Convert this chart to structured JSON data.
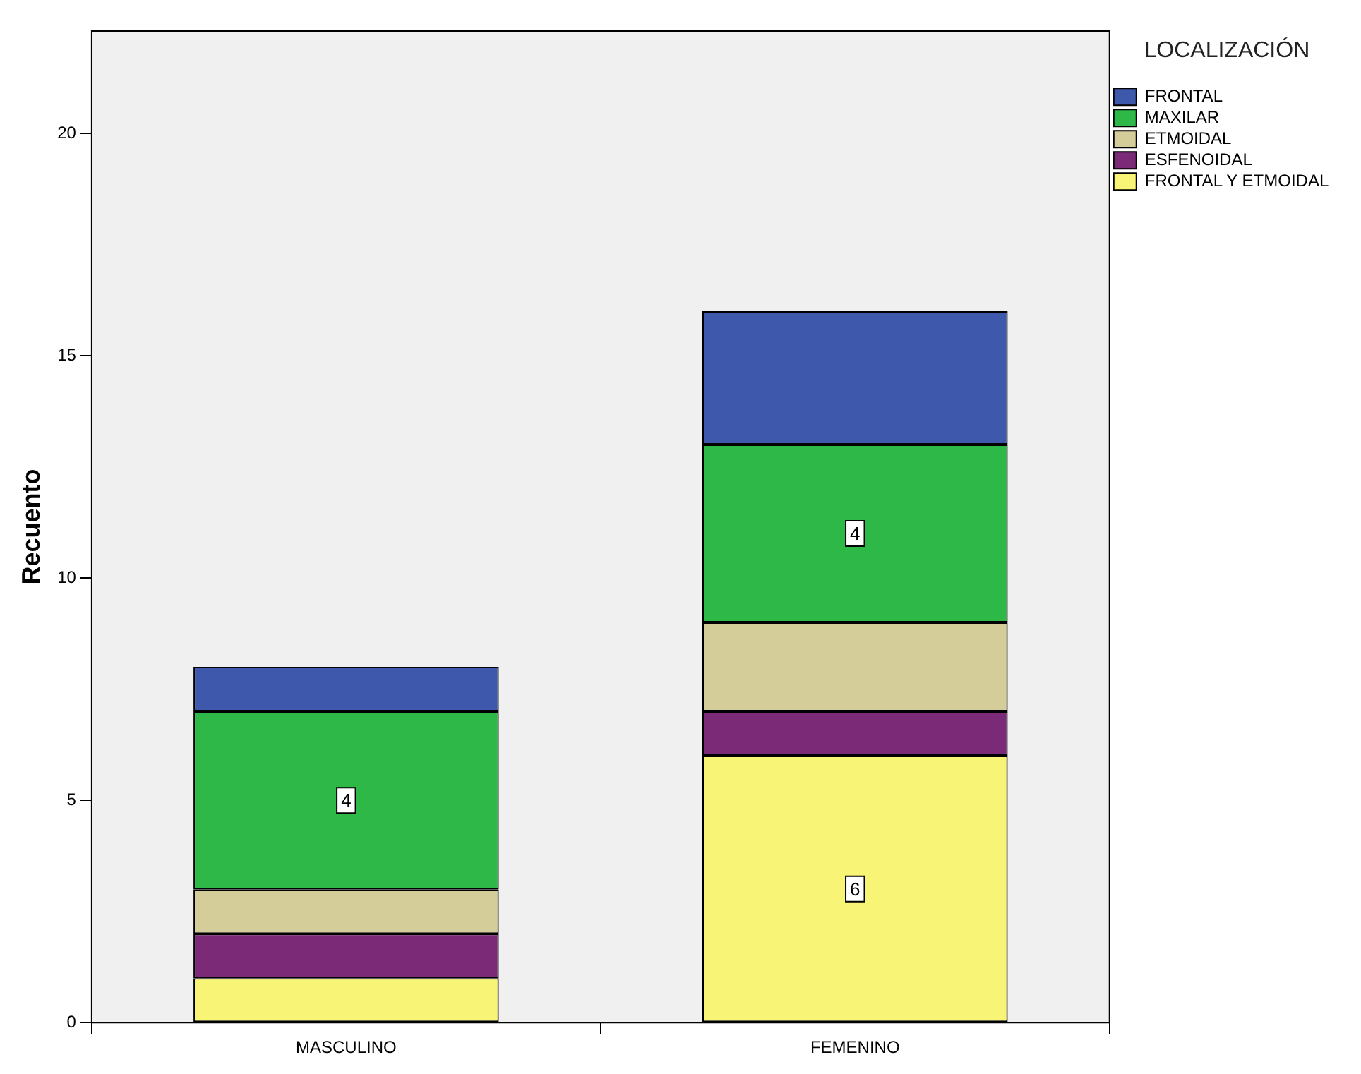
{
  "chart_data": {
    "type": "bar",
    "stacked": true,
    "ylabel": "Recuento",
    "legend_title": "LOCALIZACIÓN",
    "legend": "right",
    "categories": [
      "MASCULINO",
      "FEMENINO"
    ],
    "series": [
      {
        "name": "FRONTAL Y ETMOIDAL",
        "color": "#f8f576",
        "values": [
          1,
          6
        ],
        "value_labels": [
          null,
          "6"
        ]
      },
      {
        "name": "ESFENOIDAL",
        "color": "#7a2a77",
        "values": [
          1,
          1
        ],
        "value_labels": [
          null,
          null
        ]
      },
      {
        "name": "ETMOIDAL",
        "color": "#d4cc99",
        "values": [
          1,
          2
        ],
        "value_labels": [
          null,
          null
        ]
      },
      {
        "name": "MAXILAR",
        "color": "#2eb848",
        "values": [
          4,
          4
        ],
        "value_labels": [
          "4",
          "4"
        ]
      },
      {
        "name": "FRONTAL",
        "color": "#3e58ac",
        "values": [
          1,
          3
        ],
        "value_labels": [
          null,
          null
        ]
      }
    ],
    "ylim": [
      0,
      22.3
    ],
    "yticks": [
      0,
      5,
      10,
      15,
      20
    ],
    "grid": false
  }
}
